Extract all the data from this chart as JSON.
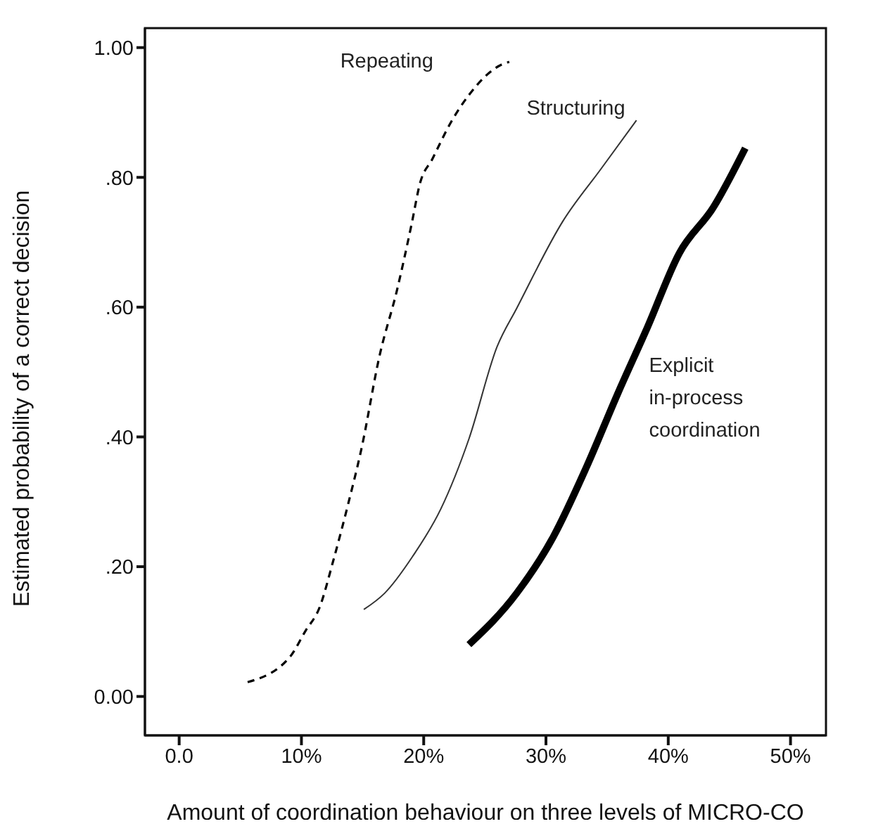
{
  "chart_data": {
    "type": "line",
    "xlabel": "Amount of coordination behaviour on three levels of MICRO-CO",
    "ylabel": "Estimated probability of a correct decision",
    "xlim": [
      -2.8,
      52.9
    ],
    "ylim": [
      -0.06,
      1.03
    ],
    "xticks": [
      {
        "value": 0,
        "label": "0.0"
      },
      {
        "value": 10,
        "label": "10%"
      },
      {
        "value": 20,
        "label": "20%"
      },
      {
        "value": 30,
        "label": "30%"
      },
      {
        "value": 40,
        "label": "40%"
      },
      {
        "value": 50,
        "label": "50%"
      }
    ],
    "yticks": [
      {
        "value": 0,
        "label": "0.00"
      },
      {
        "value": 0.2,
        "label": ".20"
      },
      {
        "value": 0.4,
        "label": ".40"
      },
      {
        "value": 0.6,
        "label": ".60"
      },
      {
        "value": 0.8,
        "label": ".80"
      },
      {
        "value": 1,
        "label": "1.00"
      }
    ],
    "grid": false,
    "legend": false,
    "marker": "none",
    "series": [
      {
        "name": "Repeating",
        "color": "#000000",
        "line_style": "dashed",
        "x": [
          5.6,
          9.1,
          10.3,
          11.5,
          12.6,
          13.8,
          14.9,
          16.4,
          17.8,
          19.0,
          19.7,
          20.7,
          22.2,
          23.7,
          26.4,
          27.0
        ],
        "values": [
          0.022,
          0.062,
          0.1,
          0.138,
          0.209,
          0.295,
          0.381,
          0.526,
          0.625,
          0.727,
          0.791,
          0.828,
          0.884,
          0.927,
          0.974,
          0.978
        ]
      },
      {
        "name": "Structuring",
        "color": "#333333",
        "line_style": "solid",
        "x": [
          15.1,
          16.8,
          19.1,
          21.4,
          23.7,
          26.0,
          27.6,
          31.4,
          34.5,
          37.4
        ],
        "values": [
          0.134,
          0.159,
          0.216,
          0.289,
          0.397,
          0.539,
          0.598,
          0.733,
          0.813,
          0.888
        ]
      },
      {
        "name": "Explicit in-process coordination",
        "color": "#000000",
        "line_style": "solid",
        "x": [
          23.7,
          27.6,
          30.6,
          33.3,
          35.9,
          38.3,
          40.9,
          43.7,
          46.3
        ],
        "values": [
          0.08,
          0.159,
          0.246,
          0.353,
          0.468,
          0.569,
          0.683,
          0.754,
          0.845
        ]
      }
    ]
  }
}
